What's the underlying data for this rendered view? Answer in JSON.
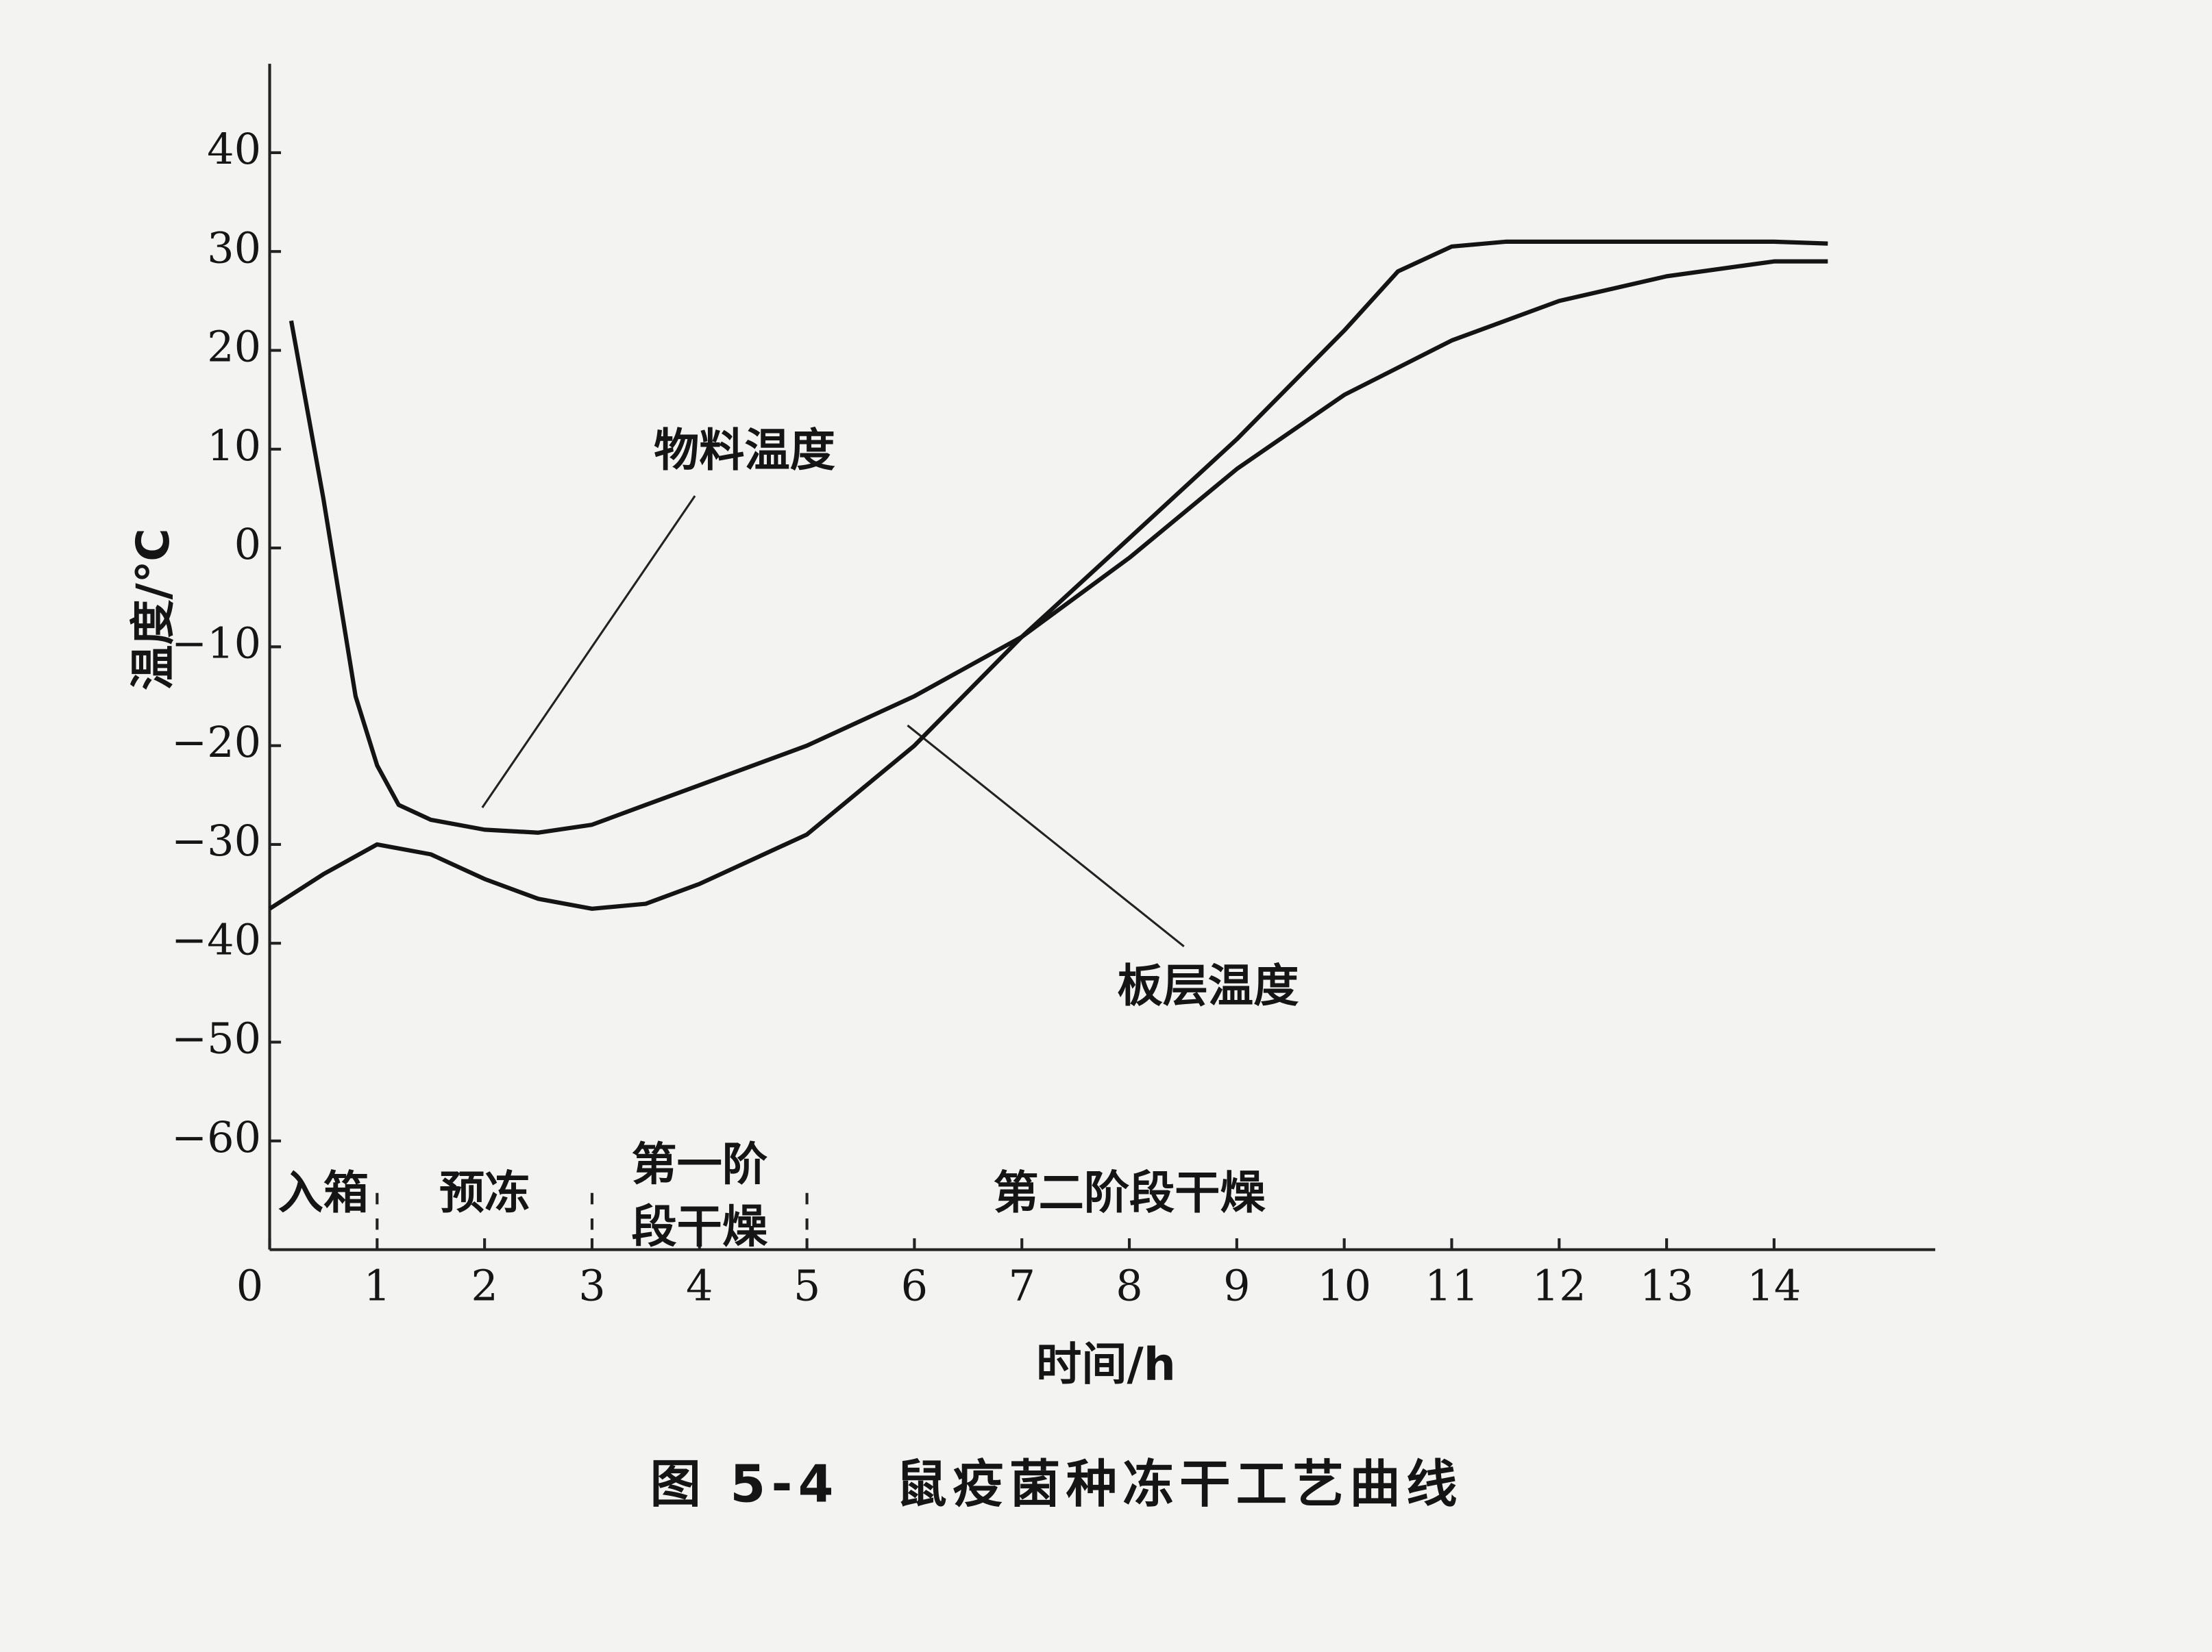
{
  "chart_data": {
    "type": "line",
    "title": "图 5-4　鼠疫菌种冻干工艺曲线",
    "x_label": "时间/h",
    "y_label": "温度/℃",
    "xlim": [
      0,
      15.5
    ],
    "ylim": [
      -71,
      49
    ],
    "xticks": [
      0,
      1,
      2,
      3,
      4,
      5,
      6,
      7,
      8,
      9,
      10,
      11,
      12,
      13,
      14
    ],
    "yticks": [
      {
        "value": -60,
        "label": "−60"
      },
      {
        "value": -50,
        "label": "−50"
      },
      {
        "value": -40,
        "label": "−40"
      },
      {
        "value": -30,
        "label": "−30"
      },
      {
        "value": -20,
        "label": "−20"
      },
      {
        "value": -10,
        "label": "−10"
      },
      0,
      10,
      20,
      30,
      40
    ],
    "phases": [
      "入箱",
      "预冻",
      "第一阶\n段干燥",
      "第二阶段干燥"
    ],
    "phase_bounds": [
      1,
      3,
      5
    ],
    "series": [
      {
        "name": "物料温度",
        "color": "#141414",
        "x": [
          0.2,
          0.5,
          0.8,
          1,
          1.2,
          1.5,
          2,
          2.5,
          3,
          3.5,
          4,
          5,
          6,
          7,
          8,
          9,
          10,
          11,
          12,
          13,
          14,
          14.5
        ],
        "values": [
          23,
          5,
          -15,
          -22,
          -26,
          -27.5,
          -28.5,
          -28.8,
          -28,
          -26,
          -24,
          -20,
          -15,
          -9,
          -1,
          8,
          15.5,
          21,
          25,
          27.5,
          29,
          29
        ]
      },
      {
        "name": "板层温度",
        "color": "#141414",
        "x": [
          0,
          0.5,
          1,
          1.5,
          2,
          2.5,
          3,
          3.5,
          4,
          5,
          6,
          7,
          8,
          9,
          10,
          10.5,
          11,
          11.5,
          12,
          13,
          14,
          14.5
        ],
        "values": [
          -36.5,
          -33,
          -30,
          -31,
          -33.5,
          -35.5,
          -36.5,
          -36,
          -34,
          -29,
          -20,
          -9,
          1,
          11,
          22,
          28,
          30.5,
          31,
          31,
          31,
          31,
          30.8
        ]
      }
    ]
  }
}
